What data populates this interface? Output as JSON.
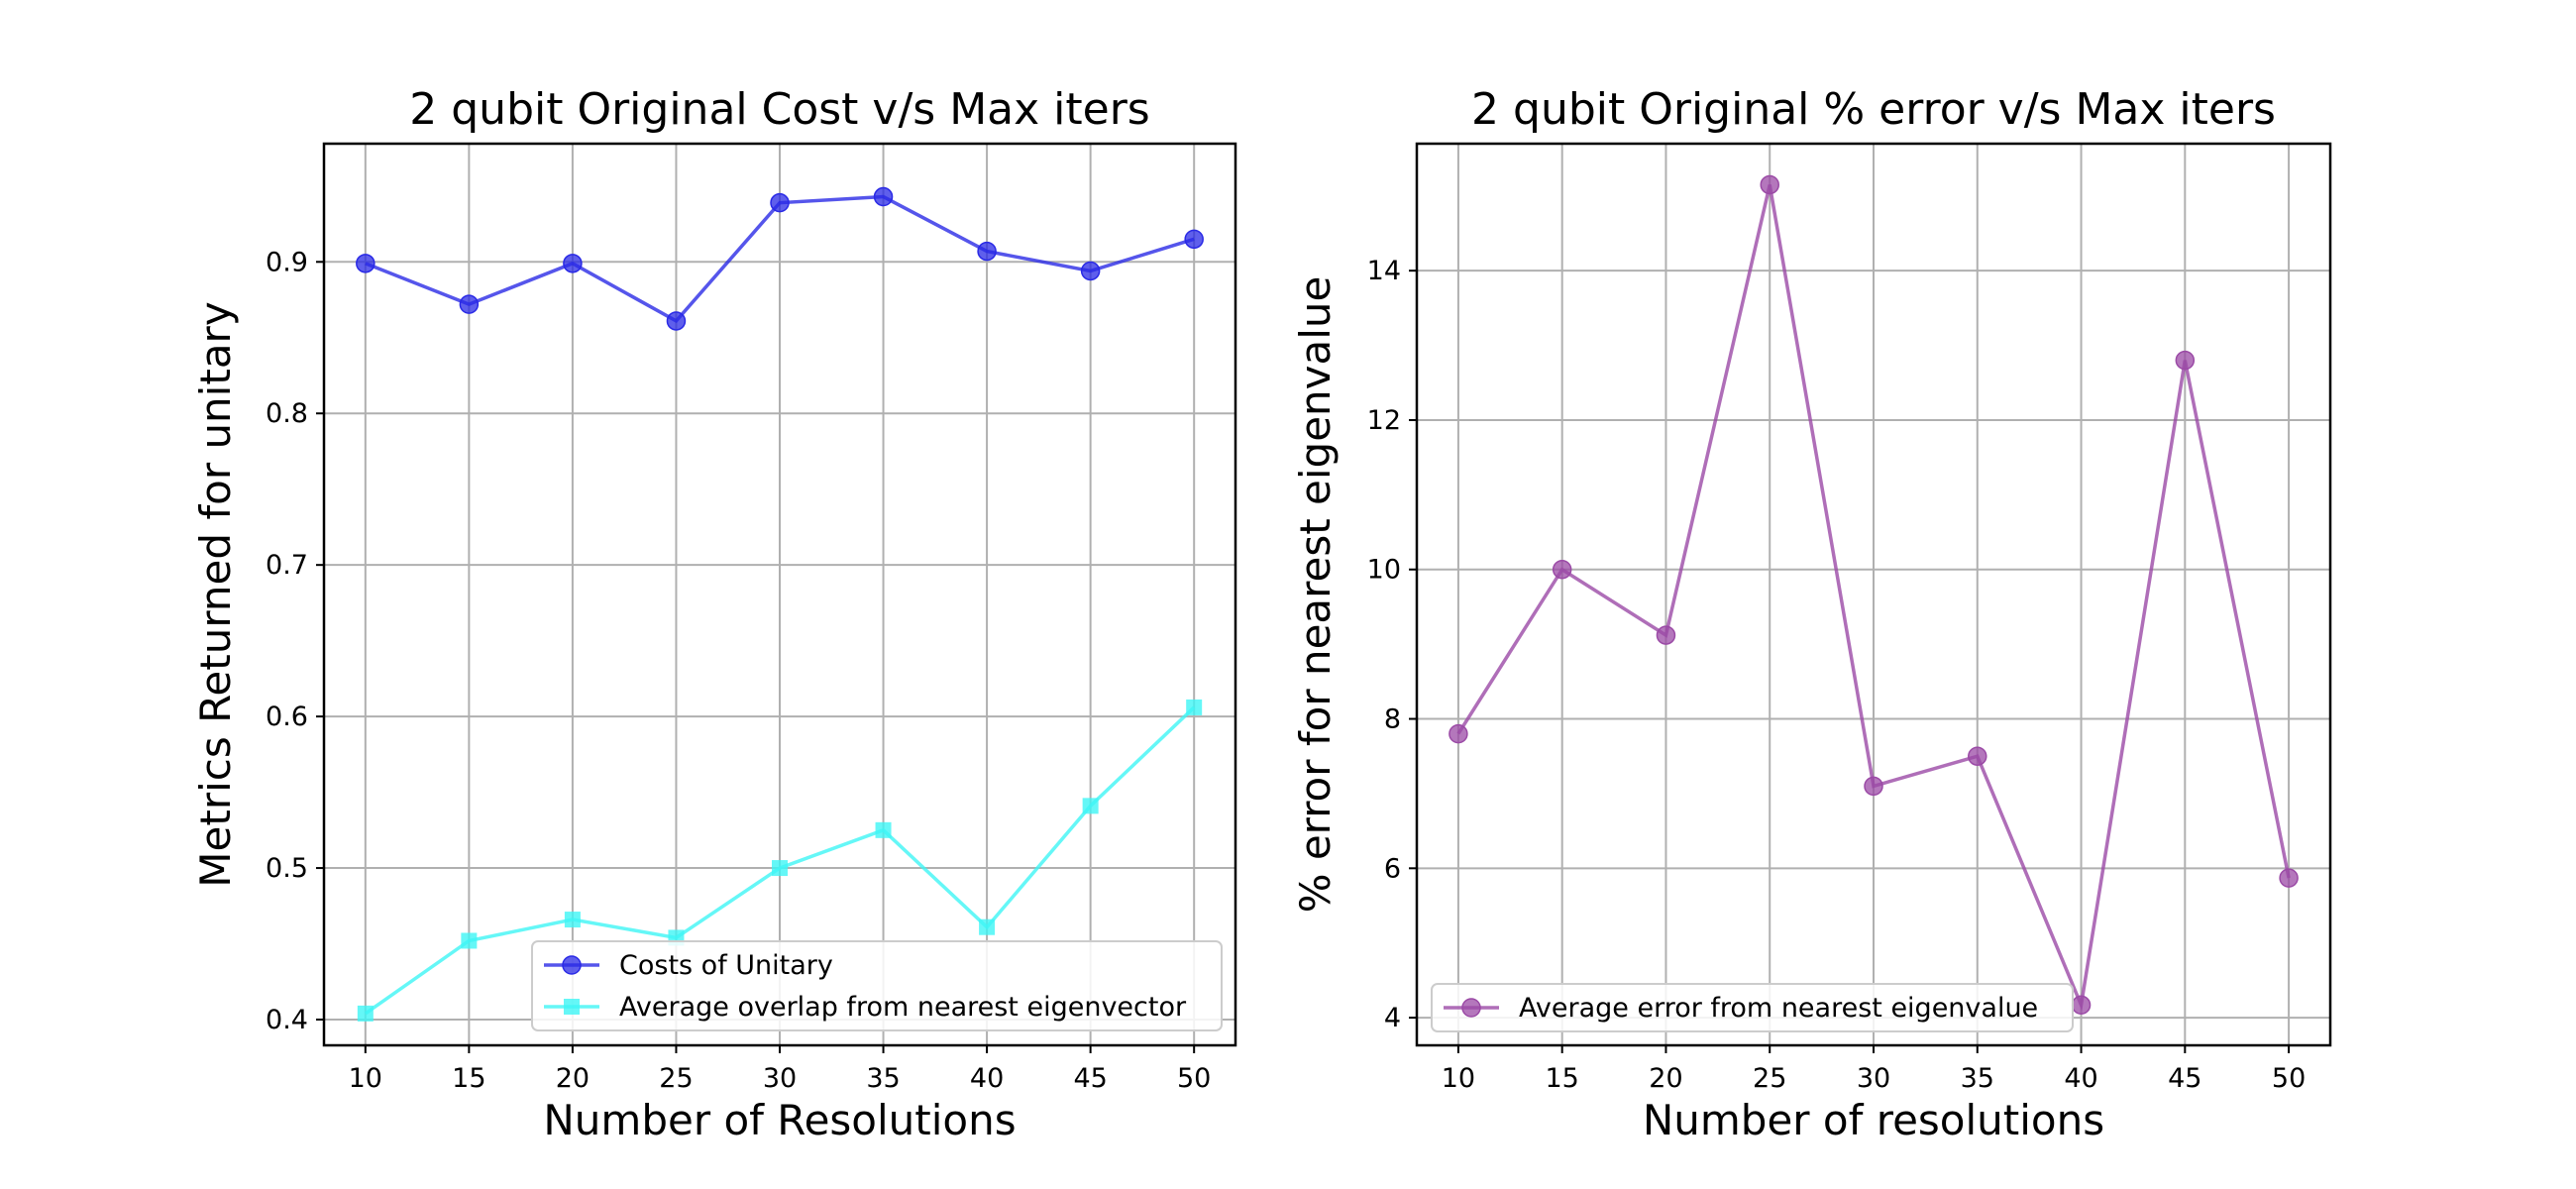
{
  "chart_data": [
    {
      "type": "line",
      "title": "2 qubit Original Cost v/s Max iters",
      "xlabel": "Number of Resolutions",
      "ylabel": "Metrics Returned for unitary",
      "x": [
        10,
        15,
        20,
        25,
        30,
        35,
        40,
        45,
        50
      ],
      "xlim": [
        8,
        52
      ],
      "ylim": [
        0.383,
        0.978
      ],
      "xticks": [
        10,
        15,
        20,
        25,
        30,
        35,
        40,
        45,
        50
      ],
      "yticks": [
        0.4,
        0.5,
        0.6,
        0.7,
        0.8,
        0.9
      ],
      "yticklabels": [
        "0.4",
        "0.5",
        "0.6",
        "0.7",
        "0.8",
        "0.9"
      ],
      "grid": true,
      "legend_position": "lower-right",
      "series": [
        {
          "name": "Costs of Unitary",
          "values": [
            0.899,
            0.872,
            0.899,
            0.861,
            0.939,
            0.943,
            0.907,
            0.894,
            0.915
          ],
          "color": "#2a2ae6",
          "marker": "circle"
        },
        {
          "name": "Average overlap from nearest eigenvector",
          "values": [
            0.404,
            0.452,
            0.466,
            0.454,
            0.5,
            0.525,
            0.461,
            0.541,
            0.606
          ],
          "color": "#3ff5f5",
          "marker": "square"
        }
      ]
    },
    {
      "type": "line",
      "title": "2 qubit Original % error v/s Max iters",
      "xlabel": "Number of resolutions",
      "ylabel": "% error for nearest eigenvalue",
      "x": [
        10,
        15,
        20,
        25,
        30,
        35,
        40,
        45,
        50
      ],
      "xlim": [
        8,
        52
      ],
      "ylim": [
        3.63,
        15.7
      ],
      "xticks": [
        10,
        15,
        20,
        25,
        30,
        35,
        40,
        45,
        50
      ],
      "yticks": [
        4,
        6,
        8,
        10,
        12,
        14
      ],
      "yticklabels": [
        "4",
        "6",
        "8",
        "10",
        "12",
        "14"
      ],
      "grid": true,
      "legend_position": "lower-left",
      "series": [
        {
          "name": "Average error from nearest eigenvalue",
          "values": [
            7.8,
            10.0,
            9.12,
            15.15,
            7.1,
            7.5,
            4.17,
            12.8,
            5.87
          ],
          "color": "#9b4aa6",
          "marker": "circle"
        }
      ]
    }
  ]
}
